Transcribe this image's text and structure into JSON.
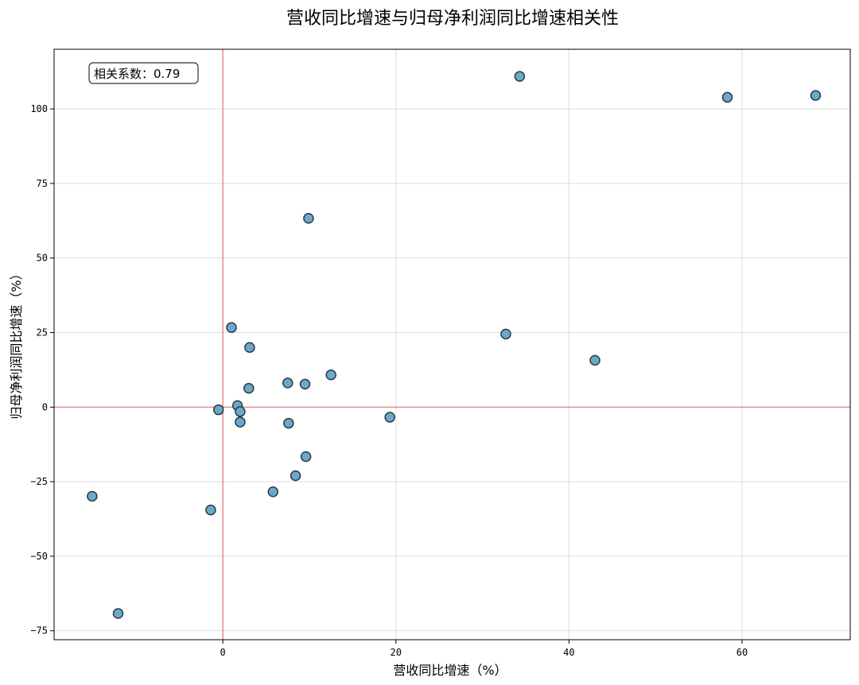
{
  "chart_data": {
    "type": "scatter",
    "title": "营收同比增速与归母净利润同比增速相关性",
    "xlabel": "营收同比增速（%）",
    "ylabel": "归母净利润同比增速（%）",
    "xlim": [
      -19.5,
      72.5
    ],
    "ylim": [
      -78,
      120
    ],
    "xticks": [
      0,
      20,
      40,
      60
    ],
    "yticks": [
      -75,
      -50,
      -25,
      0,
      25,
      50,
      75,
      100
    ],
    "xtick_labels": [
      "0",
      "20",
      "40",
      "60"
    ],
    "ytick_labels": [
      "−75",
      "−50",
      "−25",
      "0",
      "25",
      "50",
      "75",
      "100"
    ],
    "grid": true,
    "reference_lines": {
      "x": 0,
      "y": 0,
      "color": "#e57373"
    },
    "point_color": "#6aaac8",
    "annotation": "相关系数：0.79",
    "points": [
      {
        "x": 34.3,
        "y": 110.9
      },
      {
        "x": 58.3,
        "y": 103.9
      },
      {
        "x": 68.5,
        "y": 104.5
      },
      {
        "x": 9.9,
        "y": 63.3
      },
      {
        "x": 1.0,
        "y": 26.7
      },
      {
        "x": 3.1,
        "y": 20.0
      },
      {
        "x": 32.7,
        "y": 24.5
      },
      {
        "x": 43.0,
        "y": 15.7
      },
      {
        "x": 12.5,
        "y": 10.8
      },
      {
        "x": 7.5,
        "y": 8.1
      },
      {
        "x": 9.5,
        "y": 7.7
      },
      {
        "x": 3.0,
        "y": 6.3
      },
      {
        "x": 1.7,
        "y": 0.5
      },
      {
        "x": -0.5,
        "y": -0.9
      },
      {
        "x": 2.0,
        "y": -1.5
      },
      {
        "x": 2.0,
        "y": -5.0
      },
      {
        "x": 7.6,
        "y": -5.4
      },
      {
        "x": 19.3,
        "y": -3.4
      },
      {
        "x": 9.6,
        "y": -16.6
      },
      {
        "x": 8.4,
        "y": -23.0
      },
      {
        "x": 5.8,
        "y": -28.4
      },
      {
        "x": -1.4,
        "y": -34.5
      },
      {
        "x": -15.1,
        "y": -29.9
      },
      {
        "x": -12.1,
        "y": -69.2
      }
    ]
  }
}
